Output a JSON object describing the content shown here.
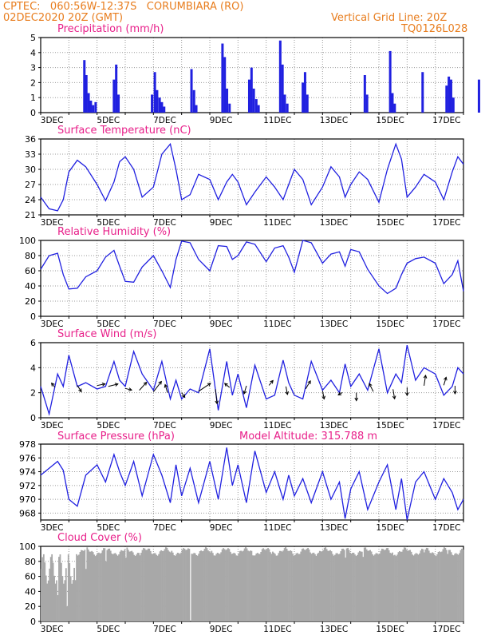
{
  "header": {
    "line1": "CPTEC:   060:56W-12:37S   CORUMBIARA (RO)",
    "line2": "02DEC2020 20Z (GMT)",
    "grid_note": "Vertical Grid Line: 20Z",
    "code": "TQ0126L028"
  },
  "colors": {
    "header": "#e87d1e",
    "title": "#e8208a",
    "series": "#2020e0",
    "cloud": "#a8a8a8",
    "wind_arrow": "#000000"
  },
  "x_labels": [
    "3DEC",
    "5DEC",
    "7DEC",
    "9DEC",
    "11DEC",
    "13DEC",
    "15DEC",
    "17DEC"
  ],
  "chart_data": [
    {
      "type": "bar",
      "title": "Precipitation (mm/h)",
      "ylim": [
        0,
        5
      ],
      "yticks": [
        0,
        1,
        2,
        3,
        4,
        5
      ],
      "grid": true,
      "x_unit": "days",
      "series": [
        {
          "values": [
            [
              1.55,
              3.5
            ],
            [
              1.62,
              2.5
            ],
            [
              1.7,
              1.3
            ],
            [
              1.78,
              0.8
            ],
            [
              1.86,
              0.5
            ],
            [
              1.95,
              0.7
            ],
            [
              2.6,
              2.2
            ],
            [
              2.68,
              3.2
            ],
            [
              2.76,
              1.2
            ],
            [
              3.95,
              1.2
            ],
            [
              4.05,
              2.7
            ],
            [
              4.13,
              1.5
            ],
            [
              4.22,
              1.0
            ],
            [
              4.3,
              0.7
            ],
            [
              4.38,
              0.4
            ],
            [
              5.35,
              2.9
            ],
            [
              5.44,
              1.5
            ],
            [
              5.52,
              0.5
            ],
            [
              6.45,
              4.6
            ],
            [
              6.53,
              3.7
            ],
            [
              6.61,
              1.6
            ],
            [
              6.7,
              0.6
            ],
            [
              7.4,
              2.2
            ],
            [
              7.48,
              3.0
            ],
            [
              7.56,
              1.6
            ],
            [
              7.65,
              0.9
            ],
            [
              7.73,
              0.5
            ],
            [
              8.5,
              4.8
            ],
            [
              8.58,
              3.2
            ],
            [
              8.66,
              1.2
            ],
            [
              8.75,
              0.6
            ],
            [
              9.3,
              2.0
            ],
            [
              9.38,
              2.7
            ],
            [
              9.46,
              1.2
            ],
            [
              11.5,
              2.5
            ],
            [
              11.58,
              1.2
            ],
            [
              12.4,
              4.1
            ],
            [
              12.48,
              1.3
            ],
            [
              12.56,
              0.6
            ],
            [
              13.55,
              2.7
            ],
            [
              14.4,
              1.8
            ],
            [
              14.48,
              2.4
            ],
            [
              14.56,
              2.2
            ],
            [
              14.64,
              1.0
            ],
            [
              15.55,
              2.2
            ]
          ]
        }
      ]
    },
    {
      "type": "line",
      "title": "Surface Temperature (nC)",
      "ylim": [
        21,
        36
      ],
      "yticks": [
        21,
        24,
        27,
        30,
        33,
        36
      ],
      "grid": true,
      "series": [
        {
          "x": [
            0,
            0.3,
            0.6,
            0.8,
            1.0,
            1.3,
            1.6,
            2.0,
            2.3,
            2.6,
            2.8,
            3.0,
            3.3,
            3.6,
            4.0,
            4.3,
            4.6,
            4.8,
            5.0,
            5.3,
            5.6,
            6.0,
            6.3,
            6.6,
            6.8,
            7.0,
            7.3,
            7.6,
            8.0,
            8.3,
            8.6,
            8.8,
            9.0,
            9.3,
            9.6,
            10.0,
            10.3,
            10.6,
            10.8,
            11.0,
            11.3,
            11.6,
            12.0,
            12.3,
            12.6,
            12.8,
            13.0,
            13.3,
            13.6,
            14.0,
            14.3,
            14.6,
            14.8,
            15.0
          ],
          "y": [
            24.5,
            22.2,
            21.8,
            24.0,
            29.5,
            31.8,
            30.5,
            27.0,
            23.8,
            27.5,
            31.5,
            32.5,
            30.0,
            24.5,
            26.5,
            33.0,
            35.0,
            30.0,
            24.0,
            25.0,
            29.0,
            28.0,
            24.0,
            27.5,
            29.0,
            27.5,
            23.0,
            25.5,
            28.5,
            26.5,
            24.0,
            27.0,
            30.0,
            28.0,
            23.0,
            26.5,
            30.5,
            28.5,
            24.5,
            27.0,
            29.5,
            28.0,
            23.5,
            30.0,
            35.0,
            32.0,
            24.5,
            26.5,
            29.0,
            27.5,
            24.0,
            29.5,
            32.5,
            31.0
          ]
        }
      ]
    },
    {
      "type": "line",
      "title": "Relative Humidity (%)",
      "ylim": [
        0,
        100
      ],
      "yticks": [
        0,
        20,
        40,
        60,
        80,
        100
      ],
      "grid": true,
      "series": [
        {
          "x": [
            0,
            0.3,
            0.6,
            0.8,
            1.0,
            1.3,
            1.6,
            2.0,
            2.3,
            2.6,
            2.8,
            3.0,
            3.3,
            3.6,
            4.0,
            4.3,
            4.6,
            4.8,
            5.0,
            5.3,
            5.6,
            6.0,
            6.3,
            6.6,
            6.8,
            7.0,
            7.3,
            7.6,
            8.0,
            8.3,
            8.6,
            8.8,
            9.0,
            9.3,
            9.6,
            10.0,
            10.3,
            10.6,
            10.8,
            11.0,
            11.3,
            11.6,
            12.0,
            12.3,
            12.6,
            12.8,
            13.0,
            13.3,
            13.6,
            14.0,
            14.3,
            14.6,
            14.8,
            15.0
          ],
          "y": [
            62,
            80,
            83,
            55,
            36,
            37,
            52,
            60,
            78,
            87,
            66,
            46,
            45,
            65,
            80,
            60,
            38,
            75,
            99,
            97,
            75,
            60,
            93,
            92,
            75,
            80,
            98,
            95,
            72,
            90,
            93,
            78,
            58,
            100,
            97,
            70,
            82,
            85,
            66,
            88,
            85,
            62,
            40,
            30,
            37,
            55,
            70,
            76,
            78,
            70,
            43,
            55,
            73,
            33
          ]
        }
      ]
    },
    {
      "type": "line",
      "title": "Surface Wind (m/s)",
      "ylim": [
        0,
        6
      ],
      "yticks": [
        0,
        2,
        4,
        6
      ],
      "grid": true,
      "series": [
        {
          "x": [
            0,
            0.3,
            0.6,
            0.8,
            1.0,
            1.3,
            1.6,
            2.0,
            2.3,
            2.6,
            2.8,
            3.0,
            3.3,
            3.6,
            4.0,
            4.3,
            4.6,
            4.8,
            5.0,
            5.3,
            5.6,
            6.0,
            6.3,
            6.6,
            6.8,
            7.0,
            7.3,
            7.6,
            8.0,
            8.3,
            8.6,
            8.8,
            9.0,
            9.3,
            9.6,
            10.0,
            10.3,
            10.6,
            10.8,
            11.0,
            11.3,
            11.6,
            12.0,
            12.3,
            12.6,
            12.8,
            13.0,
            13.3,
            13.6,
            14.0,
            14.3,
            14.6,
            14.8,
            15.0
          ],
          "y": [
            2.5,
            0.3,
            3.5,
            2.5,
            5.0,
            2.5,
            2.8,
            2.3,
            2.5,
            4.5,
            3.0,
            2.5,
            5.3,
            3.5,
            2.2,
            4.5,
            1.5,
            3.0,
            1.5,
            2.3,
            2.0,
            5.5,
            0.6,
            4.5,
            1.8,
            3.5,
            0.8,
            4.2,
            1.5,
            1.8,
            4.6,
            2.8,
            1.8,
            1.5,
            4.5,
            2.2,
            3.0,
            2.0,
            4.3,
            2.5,
            3.5,
            2.2,
            5.5,
            2.0,
            3.5,
            2.8,
            5.8,
            3.0,
            4.0,
            3.5,
            1.8,
            2.5,
            4.0,
            3.5
          ]
        }
      ],
      "wind_arrows": [
        [
          0.5,
          -0.4,
          0.5
        ],
        [
          1.3,
          0.5,
          -0.8
        ],
        [
          2.0,
          1.0,
          0.2
        ],
        [
          2.4,
          1.2,
          0.3
        ],
        [
          3.0,
          0.8,
          -0.2
        ],
        [
          3.5,
          0.9,
          1.0
        ],
        [
          4.0,
          1.0,
          1.3
        ],
        [
          4.5,
          -0.3,
          1.0
        ],
        [
          5.0,
          0.4,
          -0.6
        ],
        [
          5.6,
          1.5,
          1.0
        ],
        [
          6.2,
          0.2,
          -1.8
        ],
        [
          6.7,
          -0.6,
          0.5
        ],
        [
          7.3,
          -0.3,
          -1.0
        ],
        [
          8.1,
          0.5,
          0.6
        ],
        [
          8.7,
          0.2,
          -1.0
        ],
        [
          9.4,
          0.6,
          1.0
        ],
        [
          10.0,
          0.2,
          -1.0
        ],
        [
          10.7,
          -0.5,
          -0.3
        ],
        [
          11.2,
          0.0,
          -1.0
        ],
        [
          11.8,
          -0.5,
          1.0
        ],
        [
          12.5,
          0.2,
          -1.2
        ],
        [
          13.0,
          0.0,
          -1.0
        ],
        [
          13.6,
          0.2,
          1.3
        ],
        [
          14.3,
          0.3,
          1.0
        ],
        [
          14.7,
          0.0,
          -1.0
        ]
      ]
    },
    {
      "type": "line",
      "title": "Surface Pressure (hPa)",
      "annotation": "Model Altitude: 315.788 m",
      "ylim": [
        967,
        978
      ],
      "yticks": [
        968,
        970,
        972,
        974,
        976,
        978
      ],
      "grid": true,
      "series": [
        {
          "x": [
            0,
            0.3,
            0.6,
            0.8,
            1.0,
            1.3,
            1.6,
            2.0,
            2.3,
            2.6,
            2.8,
            3.0,
            3.3,
            3.6,
            4.0,
            4.3,
            4.6,
            4.8,
            5.0,
            5.3,
            5.6,
            6.0,
            6.3,
            6.6,
            6.8,
            7.0,
            7.3,
            7.6,
            8.0,
            8.3,
            8.6,
            8.8,
            9.0,
            9.3,
            9.6,
            10.0,
            10.3,
            10.6,
            10.8,
            11.0,
            11.3,
            11.6,
            12.0,
            12.3,
            12.6,
            12.8,
            13.0,
            13.3,
            13.6,
            14.0,
            14.3,
            14.6,
            14.8,
            15.0
          ],
          "y": [
            973.5,
            974.5,
            975.5,
            974.2,
            970.0,
            969.0,
            973.5,
            975.0,
            972.5,
            976.5,
            974.0,
            972.0,
            975.5,
            970.5,
            976.5,
            973.5,
            969.5,
            975.0,
            970.5,
            974.5,
            969.5,
            975.5,
            970.0,
            977.5,
            972.0,
            975.0,
            969.5,
            977.0,
            971.0,
            974.0,
            970.0,
            973.5,
            970.5,
            973.0,
            969.5,
            974.0,
            970.0,
            972.5,
            967.2,
            971.5,
            974.0,
            968.5,
            972.5,
            975.0,
            968.5,
            973.0,
            967.0,
            972.5,
            974.0,
            970.0,
            973.0,
            971.0,
            968.5,
            970.0
          ]
        }
      ]
    },
    {
      "type": "bar",
      "title": "Cloud Cover (%)",
      "ylim": [
        0,
        100
      ],
      "yticks": [
        0,
        20,
        40,
        60,
        80,
        100
      ],
      "grid": true,
      "values_note": "hourly cloud cover, mostly 90-98% with dips",
      "dips": [
        [
          0.6,
          35
        ],
        [
          0.9,
          20
        ],
        [
          1.2,
          55
        ],
        [
          1.6,
          70
        ],
        [
          2.3,
          80
        ],
        [
          3.0,
          85
        ],
        [
          3.5,
          88
        ],
        [
          4.6,
          92
        ],
        [
          5.3,
          0
        ],
        [
          6.0,
          92
        ],
        [
          7.5,
          88
        ],
        [
          8.2,
          93
        ],
        [
          9.8,
          90
        ],
        [
          10.8,
          85
        ],
        [
          11.4,
          86
        ],
        [
          12.5,
          88
        ],
        [
          13.6,
          92
        ],
        [
          14.4,
          90
        ]
      ]
    }
  ]
}
